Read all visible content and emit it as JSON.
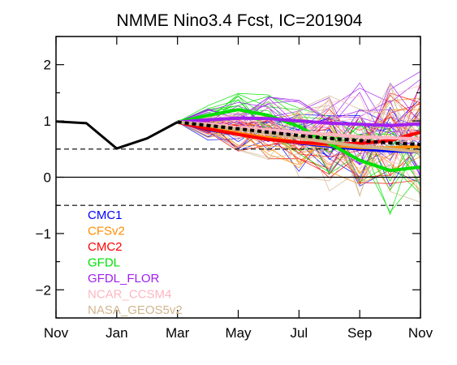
{
  "chart_data": {
    "type": "line",
    "title": "NMME Nino3.4 Fcst, IC=201904",
    "xlabel": "",
    "ylabel": "",
    "x_ticks": [
      "Nov",
      "Jan",
      "Mar",
      "May",
      "Jul",
      "Sep",
      "Nov"
    ],
    "xlim": [
      0,
      12
    ],
    "ylim": [
      -2.5,
      2.5
    ],
    "y_ticks": [
      2,
      1,
      0,
      -1,
      -2
    ],
    "reference_lines": [
      {
        "y": 0.5,
        "style": "dashed"
      },
      {
        "y": 0,
        "style": "solid"
      },
      {
        "y": -0.5,
        "style": "dashed"
      }
    ],
    "observed": {
      "x": [
        0,
        1,
        2,
        3,
        4
      ],
      "values": [
        0.99,
        0.96,
        0.51,
        0.69,
        0.98
      ],
      "color": "#000000"
    },
    "ensemble_mean": {
      "x": [
        4,
        5,
        6,
        7,
        8,
        9,
        10,
        11,
        12
      ],
      "values": [
        0.98,
        0.92,
        0.86,
        0.8,
        0.74,
        0.69,
        0.65,
        0.61,
        0.58
      ],
      "color": "#000000",
      "style": "dotted"
    },
    "series": [
      {
        "name": "CMC1",
        "color": "#0000ff",
        "x": [
          4,
          5,
          6,
          7,
          8,
          9,
          10,
          11,
          12
        ],
        "values": [
          0.98,
          0.85,
          0.76,
          0.68,
          0.61,
          0.55,
          0.5,
          0.47,
          0.45
        ]
      },
      {
        "name": "CFSv2",
        "color": "#ff8c00",
        "x": [
          4,
          5,
          6,
          7,
          8,
          9,
          10,
          11,
          12
        ],
        "values": [
          0.98,
          0.88,
          0.78,
          0.7,
          0.62,
          0.57,
          0.53,
          0.52,
          0.55
        ]
      },
      {
        "name": "CMC2",
        "color": "#ff0000",
        "x": [
          4,
          5,
          6,
          7,
          8,
          9,
          10,
          11,
          12
        ],
        "values": [
          0.98,
          0.86,
          0.76,
          0.67,
          0.62,
          0.59,
          0.6,
          0.65,
          0.8
        ]
      },
      {
        "name": "GFDL",
        "color": "#00e000",
        "x": [
          4,
          5,
          6,
          7,
          8,
          9,
          10,
          11,
          12
        ],
        "values": [
          0.98,
          1.1,
          1.2,
          1.1,
          0.9,
          0.6,
          0.3,
          0.12,
          0.18
        ]
      },
      {
        "name": "GFDL_FLOR",
        "color": "#a020f0",
        "x": [
          4,
          5,
          6,
          7,
          8,
          9,
          10,
          11,
          12
        ],
        "values": [
          0.98,
          1.02,
          1.05,
          1.04,
          1.0,
          0.96,
          0.94,
          0.92,
          0.95
        ]
      },
      {
        "name": "NCAR_CCSM4",
        "color": "#ffb6c1",
        "x": [
          4,
          5,
          6,
          7,
          8,
          9,
          10,
          11,
          12
        ],
        "values": [
          0.98,
          0.94,
          0.88,
          0.84,
          0.8,
          0.76,
          0.72,
          0.7,
          0.68
        ]
      },
      {
        "name": "NASA_GEOS5v2",
        "color": "#d2b48c",
        "x": [
          4,
          5,
          6,
          7,
          8,
          9,
          10,
          11,
          12
        ],
        "values": [
          0.98,
          0.92,
          0.85,
          0.78,
          0.7,
          0.62,
          0.55,
          0.5,
          0.45
        ]
      }
    ],
    "legend_position": "lower-left",
    "grid": false
  }
}
